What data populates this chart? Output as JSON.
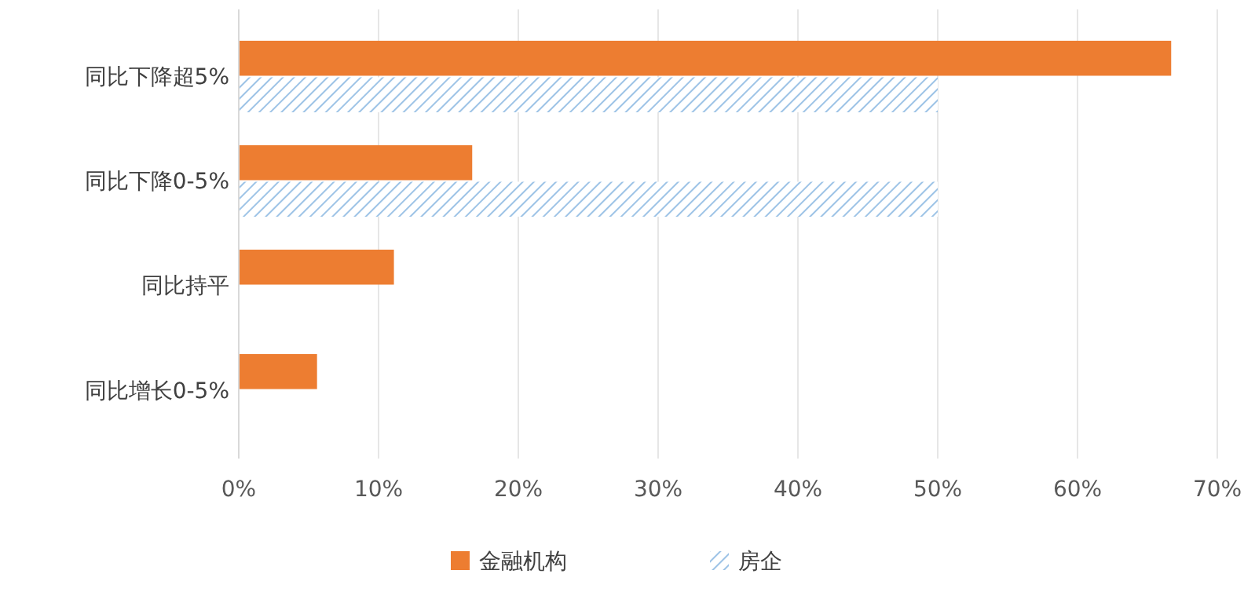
{
  "chart_data": {
    "type": "bar",
    "orientation": "horizontal",
    "categories": [
      "同比下降超5%",
      "同比下降0-5%",
      "同比持平",
      "同比增长0-5%"
    ],
    "series": [
      {
        "name": "金融机构",
        "color": "#ed7d31",
        "values": [
          66.7,
          16.7,
          11.1,
          5.6
        ]
      },
      {
        "name": "房企",
        "color": "#9dc3e6",
        "values": [
          50,
          50,
          null,
          null
        ]
      }
    ],
    "xlim": [
      0,
      70
    ],
    "xticks": [
      {
        "value": 0,
        "label": "0%"
      },
      {
        "value": 10,
        "label": "10%"
      },
      {
        "value": 20,
        "label": "20%"
      },
      {
        "value": 30,
        "label": "30%"
      },
      {
        "value": 40,
        "label": "40%"
      },
      {
        "value": 50,
        "label": "50%"
      },
      {
        "value": 60,
        "label": "60%"
      },
      {
        "value": 70,
        "label": "70%"
      }
    ],
    "grid": "x",
    "legend": "bottom"
  }
}
